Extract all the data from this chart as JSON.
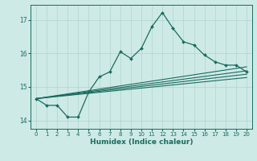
{
  "xlabel": "Humidex (Indice chaleur)",
  "bg_color": "#ceeae6",
  "grid_color": "#afd4cf",
  "line_color": "#1a6b5e",
  "xlim": [
    -0.5,
    20.5
  ],
  "ylim": [
    13.75,
    17.45
  ],
  "yticks": [
    14,
    15,
    16,
    17
  ],
  "xticks": [
    0,
    1,
    2,
    3,
    4,
    5,
    6,
    7,
    8,
    9,
    10,
    11,
    12,
    13,
    14,
    15,
    16,
    17,
    18,
    19,
    20
  ],
  "main_series": {
    "x": [
      0,
      1,
      2,
      3,
      4,
      5,
      6,
      7,
      8,
      9,
      10,
      11,
      12,
      13,
      14,
      15,
      16,
      17,
      18,
      19,
      20
    ],
    "y": [
      14.65,
      14.45,
      14.45,
      14.1,
      14.1,
      14.85,
      15.3,
      15.45,
      16.05,
      15.85,
      16.15,
      16.8,
      17.22,
      16.75,
      16.35,
      16.25,
      15.95,
      15.75,
      15.65,
      15.65,
      15.45
    ]
  },
  "linear_series": [
    {
      "x": [
        0,
        20
      ],
      "y": [
        14.65,
        15.6
      ]
    },
    {
      "x": [
        0,
        20
      ],
      "y": [
        14.65,
        15.48
      ]
    },
    {
      "x": [
        0,
        20
      ],
      "y": [
        14.65,
        15.38
      ]
    },
    {
      "x": [
        0,
        20
      ],
      "y": [
        14.65,
        15.28
      ]
    }
  ]
}
